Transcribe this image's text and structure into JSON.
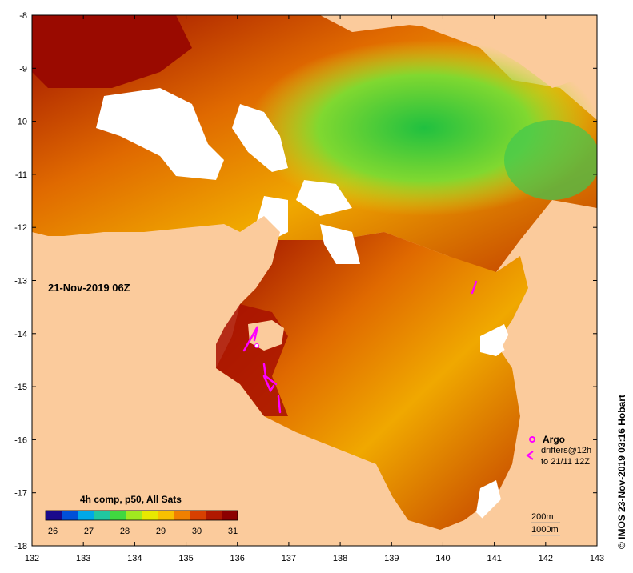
{
  "map": {
    "timestamp_label": "21-Nov-2019 06Z",
    "colorbar_title": "4h comp, p50, All Sats",
    "colorbar_ticks": [
      "26",
      "27",
      "28",
      "29",
      "30",
      "31"
    ],
    "colorbar_colors": [
      "#1a0a8c",
      "#0050d8",
      "#00a8e8",
      "#20c8a0",
      "#40d840",
      "#a0e820",
      "#e8e800",
      "#f8c000",
      "#f08000",
      "#d84000",
      "#b01800",
      "#8c0000"
    ],
    "x_ticks": [
      "132",
      "133",
      "134",
      "135",
      "136",
      "137",
      "138",
      "139",
      "140",
      "141",
      "142",
      "143"
    ],
    "y_ticks": [
      "-8",
      "-9",
      "-10",
      "-11",
      "-12",
      "-13",
      "-14",
      "-15",
      "-16",
      "-17",
      "-18"
    ],
    "legend": {
      "argo_label": "Argo",
      "drifters_label": "drifters@12h",
      "drifters_range": "to 21/11 12Z"
    },
    "contour_labels": [
      "200m",
      "1000m"
    ],
    "credit": "© IMOS 23-Nov-2019 03:16 Hobart",
    "colors": {
      "land": "#fbcb9c",
      "argo": "#ff00ff",
      "drifter": "#ff00ff",
      "no_data": "#ffffff"
    }
  }
}
